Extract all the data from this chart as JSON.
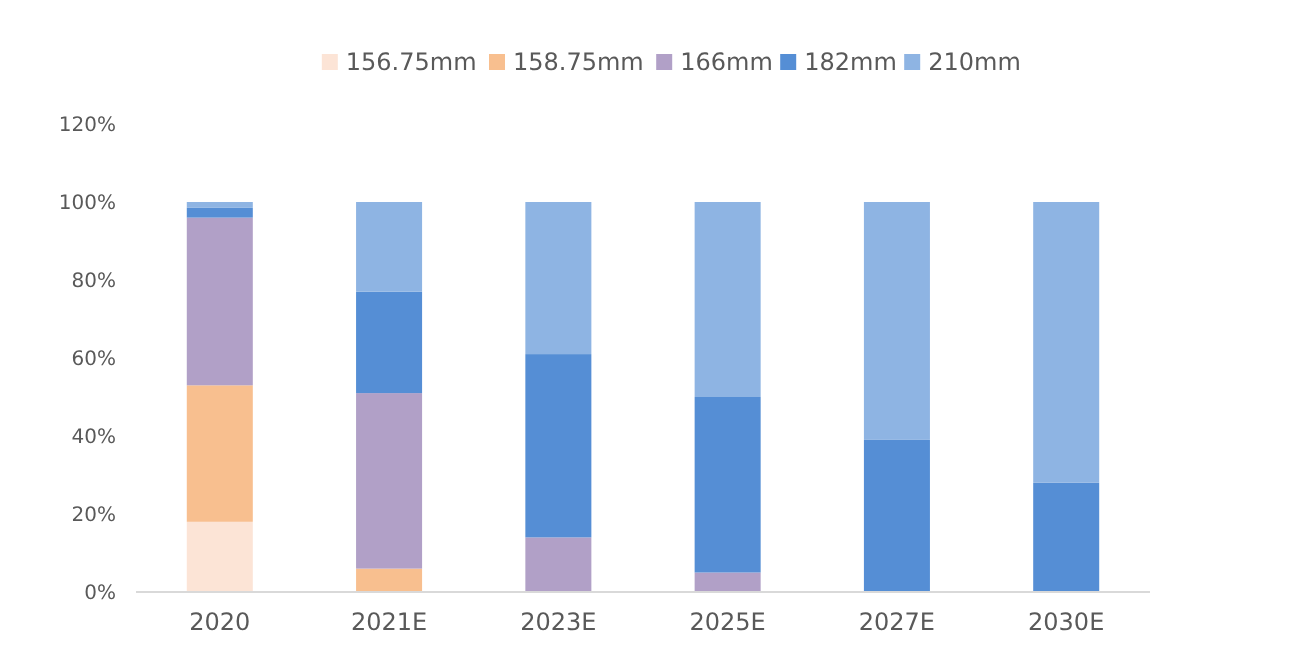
{
  "chart_data": {
    "type": "bar",
    "stacked": true,
    "categories": [
      "2020",
      "2021E",
      "2023E",
      "2025E",
      "2027E",
      "2030E"
    ],
    "series": [
      {
        "name": "156.75mm",
        "color": "#fce4d6",
        "values": [
          18,
          0,
          0,
          0,
          0,
          0
        ]
      },
      {
        "name": "158.75mm",
        "color": "#f8bf8f",
        "values": [
          35,
          6,
          0,
          0,
          0,
          0
        ]
      },
      {
        "name": "166mm",
        "color": "#b1a0c7",
        "values": [
          43,
          45,
          14,
          5,
          0,
          0
        ]
      },
      {
        "name": "182mm",
        "color": "#558ed5",
        "values": [
          2.5,
          26,
          47,
          45,
          39,
          28
        ]
      },
      {
        "name": "210mm",
        "color": "#8eb4e3",
        "values": [
          1.5,
          23,
          39,
          50,
          61,
          72
        ]
      }
    ],
    "ylim": [
      0,
      120
    ],
    "yticks": [
      {
        "value": 0,
        "label": "0%"
      },
      {
        "value": 20,
        "label": "20%"
      },
      {
        "value": 40,
        "label": "40%"
      },
      {
        "value": 60,
        "label": "60%"
      },
      {
        "value": 80,
        "label": "80%"
      },
      {
        "value": 100,
        "label": "100%"
      },
      {
        "value": 120,
        "label": "120%"
      }
    ],
    "grid": false,
    "legend": "top"
  }
}
